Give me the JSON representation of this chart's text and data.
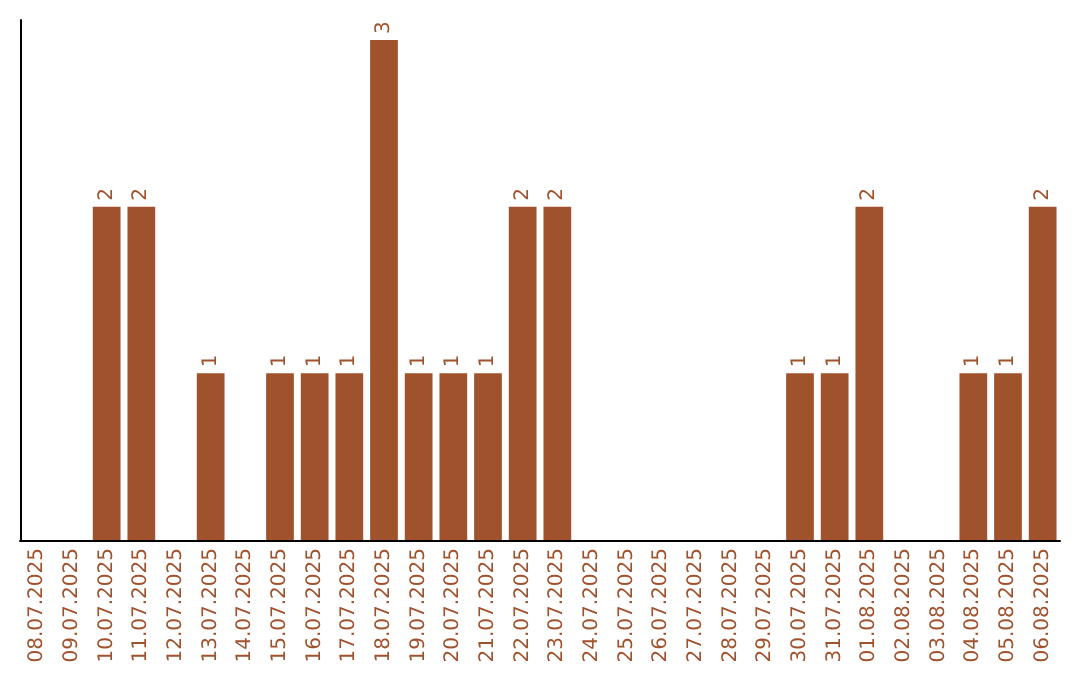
{
  "chart_data": {
    "type": "bar",
    "categories": [
      "08.07.2025",
      "09.07.2025",
      "10.07.2025",
      "11.07.2025",
      "12.07.2025",
      "13.07.2025",
      "14.07.2025",
      "15.07.2025",
      "16.07.2025",
      "17.07.2025",
      "18.07.2025",
      "19.07.2025",
      "20.07.2025",
      "21.07.2025",
      "22.07.2025",
      "23.07.2025",
      "24.07.2025",
      "25.07.2025",
      "26.07.2025",
      "27.07.2025",
      "28.07.2025",
      "29.07.2025",
      "30.07.2025",
      "31.07.2025",
      "01.08.2025",
      "02.08.2025",
      "03.08.2025",
      "04.08.2025",
      "05.08.2025",
      "06.08.2025"
    ],
    "values": [
      0,
      0,
      2,
      2,
      0,
      1,
      0,
      1,
      1,
      1,
      3,
      1,
      1,
      1,
      2,
      2,
      0,
      0,
      0,
      0,
      0,
      0,
      1,
      1,
      2,
      0,
      0,
      1,
      1,
      2
    ],
    "value_labels": [
      null,
      null,
      "2",
      "2",
      null,
      "1",
      null,
      "1",
      "1",
      "1",
      "3",
      "1",
      "1",
      "1",
      "2",
      "2",
      null,
      null,
      null,
      null,
      null,
      null,
      "1",
      "1",
      "2",
      null,
      null,
      "1",
      "1",
      "2"
    ],
    "color": "#a0522d",
    "grid": false,
    "tick_labels": "x"
  }
}
